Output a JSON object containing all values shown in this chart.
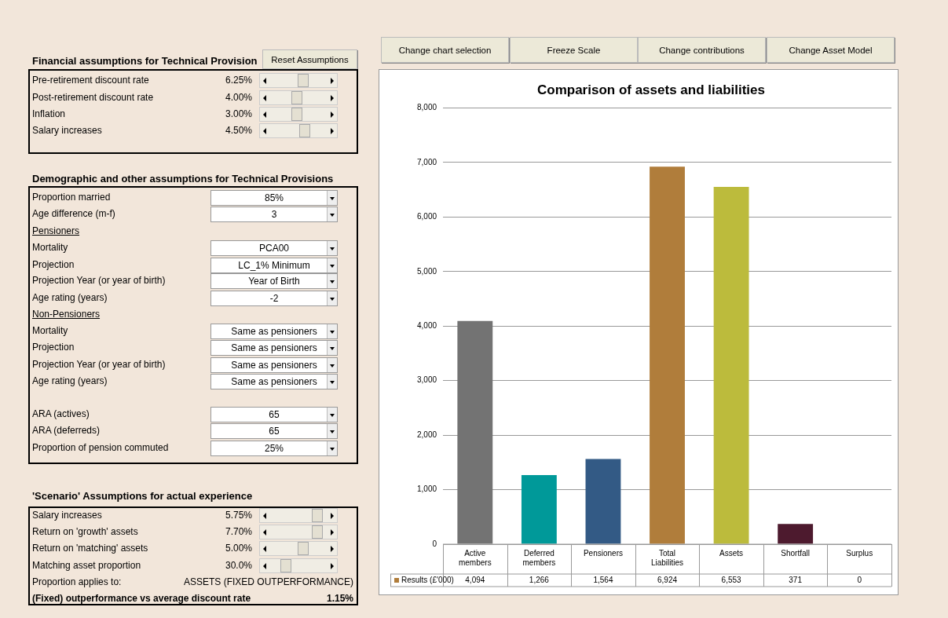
{
  "chart_data": {
    "type": "bar",
    "title": "Comparison of assets and liabilities",
    "categories": [
      "Active members",
      "Deferred members",
      "Pensioners",
      "Total Liabilities",
      "Assets",
      "Shortfall",
      "Surplus"
    ],
    "series": [
      {
        "name": "Results (£'000)",
        "color": "#b07d3b",
        "colors": [
          "#737373",
          "#009999",
          "#335a85",
          "#b07d3b",
          "#bcbb3c",
          "#4d1a2e",
          "#4bacc6"
        ],
        "values": [
          4094,
          1266,
          1564,
          6924,
          6553,
          371,
          0
        ],
        "value_labels": [
          "4,094",
          "1,266",
          "1,564",
          "6,924",
          "6,553",
          "371",
          "0"
        ]
      }
    ],
    "ylim": [
      0,
      8000
    ],
    "yticks": [
      {
        "value": 0,
        "label": "0"
      },
      {
        "value": 1000,
        "label": "1,000"
      },
      {
        "value": 2000,
        "label": "2,000"
      },
      {
        "value": 3000,
        "label": "3,000"
      },
      {
        "value": 4000,
        "label": "4,000"
      },
      {
        "value": 5000,
        "label": "5,000"
      },
      {
        "value": 6000,
        "label": "6,000"
      },
      {
        "value": 7000,
        "label": "7,000"
      },
      {
        "value": 8000,
        "label": "8,000"
      }
    ],
    "grid": "y",
    "legend": "bottom left",
    "annotations": [
      "Financial assumptions for Technical Provision",
      "Reset Assumptions",
      "Pre-retirement discount rate",
      "6.25%",
      "Post-retirement discount rate",
      "4.00%",
      "Inflation",
      "3.00%",
      "Salary increases",
      "4.50%",
      "Demographic and other assumptions for Technical Provisions",
      "Proportion married",
      "85%",
      "Age difference (m-f)",
      "3",
      "Pensioners",
      "Mortality",
      "PCA00",
      "Projection",
      "LC_1% Minimum",
      "Projection Year (or year of birth)",
      "Year of Birth",
      "Age rating (years)",
      "-2",
      "Non-Pensioners",
      "Mortality",
      "Same as pensioners",
      "Projection",
      "Same as pensioners",
      "Projection Year (or year of birth)",
      "Same as pensioners",
      "Age rating (years)",
      "Same as pensioners",
      "ARA (actives)",
      "65",
      "ARA (deferreds)",
      "65",
      "Proportion of pension commuted",
      "25%",
      "'Scenario' Assumptions for actual experience",
      "Salary increases",
      "5.75%",
      "Return on 'growth' assets",
      "7.70%",
      "Return on 'matching' assets",
      "5.00%",
      "Matching asset proportion",
      "30.0%",
      "Proportion applies to:",
      "ASSETS (FIXED OUTPERFORMANCE)",
      "(Fixed) outperformance vs average discount rate",
      "1.15%",
      "Change chart selection",
      "Freeze Scale",
      "Change contributions",
      "Change Asset Model"
    ]
  }
}
